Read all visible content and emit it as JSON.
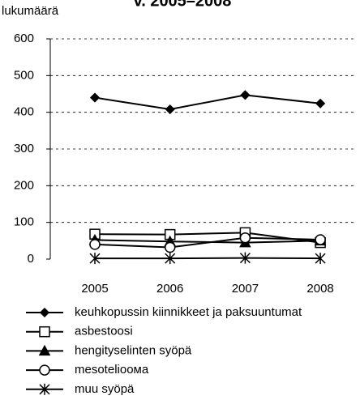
{
  "chart_data": {
    "type": "line",
    "title": "v. 2005–2008",
    "y_label": "lukumäärä",
    "categories": [
      "2005",
      "2006",
      "2007",
      "2008"
    ],
    "ylim": [
      0,
      600
    ],
    "yticks": [
      0,
      100,
      200,
      300,
      400,
      500,
      600
    ],
    "grid": true,
    "series": [
      {
        "name": "keuhkopussin kiinnikkeet ja paksuuntumat",
        "color": "#000000",
        "marker": "diamond",
        "values": [
          440,
          408,
          447,
          424
        ]
      },
      {
        "name": "asbestoosi",
        "color": "#000000",
        "marker": "square",
        "values": [
          68,
          67,
          72,
          45
        ]
      },
      {
        "name": "hengityselinten syöpä",
        "color": "#000000",
        "marker": "triangle",
        "values": [
          52,
          48,
          45,
          50
        ]
      },
      {
        "name": "mesotelioома",
        "color": "#000000",
        "marker": "circle",
        "values": [
          40,
          32,
          58,
          53
        ]
      },
      {
        "name": "muu syöpä",
        "color": "#000000",
        "marker": "star",
        "values": [
          2,
          2,
          3,
          2
        ]
      }
    ]
  }
}
